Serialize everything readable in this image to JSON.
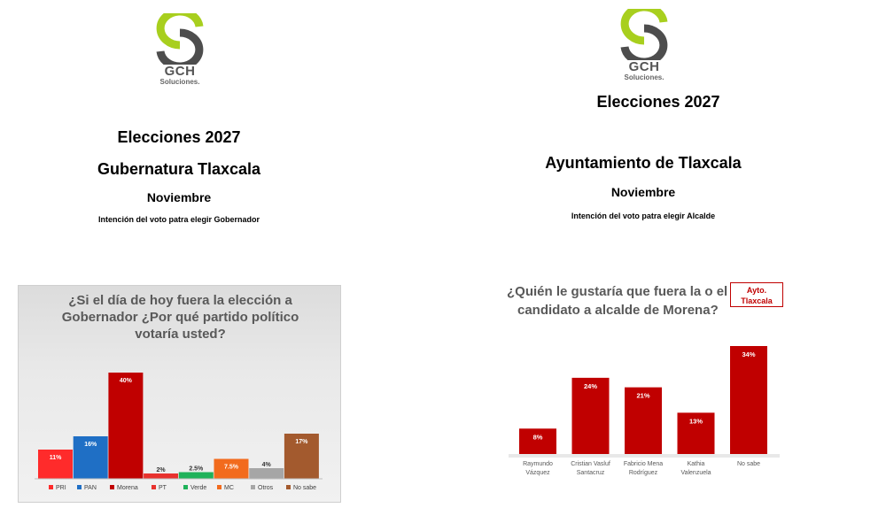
{
  "left": {
    "logo": {
      "name": "GCH",
      "tagline": "Soluciones."
    },
    "heading": "Elecciones 2027",
    "subheading": "Gubernatura Tlaxcala",
    "month": "Noviembre",
    "intent": "Intención del voto patra elegir Gobernador"
  },
  "right": {
    "logo": {
      "name": "GCH",
      "tagline": "Soluciones."
    },
    "heading": "Elecciones 2027",
    "subheading": "Ayuntamiento de Tlaxcala",
    "month": "Noviembre",
    "intent": "Intención del voto patra elegir Alcalde"
  },
  "chart_data": [
    {
      "type": "bar",
      "title_lines": [
        "¿Si el día de hoy fuera la elección a",
        "Gobernador ¿Por qué partido político",
        "votaría usted?"
      ],
      "categories": [
        "PRI",
        "PAN",
        "Morena",
        "PT",
        "Verde",
        "MC",
        "Otros",
        "No sabe"
      ],
      "values": [
        11,
        16,
        40,
        2,
        2.5,
        7.5,
        4,
        17
      ],
      "data_labels": [
        "11%",
        "16%",
        "40%",
        "2%",
        "2.5%",
        "7.5%",
        "4%",
        "17%"
      ],
      "colors": [
        "#ff2b2b",
        "#1f6fc5",
        "#c00000",
        "#e8322e",
        "#1fb25a",
        "#f26b1d",
        "#a6a6a6",
        "#a35a2e"
      ],
      "legend_position": "bottom",
      "ylim": [
        0,
        45
      ],
      "grid": false
    },
    {
      "type": "bar",
      "title_lines": [
        "¿Quién le gustaría que fuera la o el",
        "candidato a alcalde de Morena?"
      ],
      "badge": "Ayto. Tlaxcala",
      "categories": [
        "Raymundo Vázquez",
        "Cristian Vasluf Santacruz",
        "Fabricio Mena Rodríguez",
        "Kathia Valenzuela",
        "No sabe"
      ],
      "values": [
        8,
        24,
        21,
        13,
        34
      ],
      "data_labels": [
        "8%",
        "24%",
        "21%",
        "13%",
        "34%"
      ],
      "color": "#c00000",
      "ylim": [
        0,
        38
      ],
      "grid": false
    }
  ]
}
